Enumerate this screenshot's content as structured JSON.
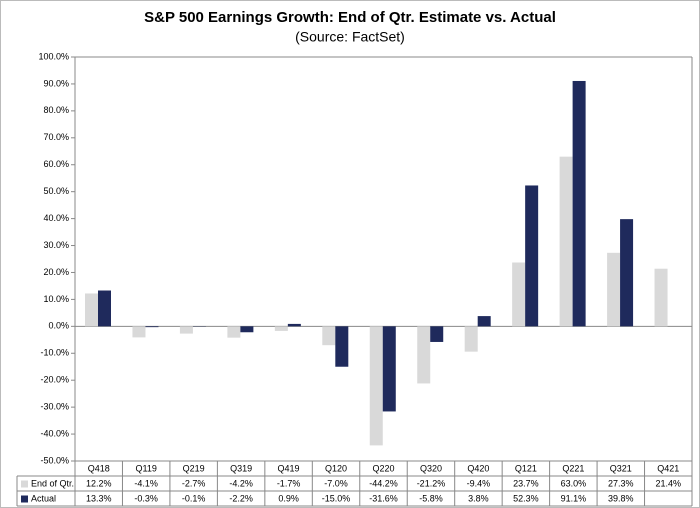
{
  "chart_data": {
    "type": "bar",
    "title": "S&P 500 Earnings Growth: End of Qtr. Estimate vs. Actual",
    "subtitle": "(Source: FactSet)",
    "categories": [
      "Q418",
      "Q119",
      "Q219",
      "Q319",
      "Q419",
      "Q120",
      "Q220",
      "Q320",
      "Q420",
      "Q121",
      "Q221",
      "Q321",
      "Q421"
    ],
    "series": [
      {
        "name": "End of Qtr.",
        "color": "#d9d9d9",
        "values": [
          12.2,
          -4.1,
          -2.7,
          -4.2,
          -1.7,
          -7.0,
          -44.2,
          -21.2,
          -9.4,
          23.7,
          63.0,
          27.3,
          21.4
        ],
        "value_labels": [
          "12.2%",
          "-4.1%",
          "-2.7%",
          "-4.2%",
          "-1.7%",
          "-7.0%",
          "-44.2%",
          "-21.2%",
          "-9.4%",
          "23.7%",
          "63.0%",
          "27.3%",
          "21.4%"
        ]
      },
      {
        "name": "Actual",
        "color": "#1f2a5c",
        "values": [
          13.3,
          -0.3,
          -0.1,
          -2.2,
          0.9,
          -15.0,
          -31.6,
          -5.8,
          3.8,
          52.3,
          91.1,
          39.8,
          null
        ],
        "value_labels": [
          "13.3%",
          "-0.3%",
          "-0.1%",
          "-2.2%",
          "0.9%",
          "-15.0%",
          "-31.6%",
          "-5.8%",
          "3.8%",
          "52.3%",
          "91.1%",
          "39.8%",
          null
        ]
      }
    ],
    "ylim": [
      -50,
      100
    ],
    "yticks": [
      {
        "value": -50,
        "label": "-50.0%"
      },
      {
        "value": -40,
        "label": "-40.0%"
      },
      {
        "value": -30,
        "label": "-30.0%"
      },
      {
        "value": -20,
        "label": "-20.0%"
      },
      {
        "value": -10,
        "label": "-10.0%"
      },
      {
        "value": 0,
        "label": "0.0%"
      },
      {
        "value": 10,
        "label": "10.0%"
      },
      {
        "value": 20,
        "label": "20.0%"
      },
      {
        "value": 30,
        "label": "30.0%"
      },
      {
        "value": 40,
        "label": "40.0%"
      },
      {
        "value": 50,
        "label": "50.0%"
      },
      {
        "value": 60,
        "label": "60.0%"
      },
      {
        "value": 70,
        "label": "70.0%"
      },
      {
        "value": 80,
        "label": "80.0%"
      },
      {
        "value": 90,
        "label": "90.0%"
      },
      {
        "value": 100,
        "label": "100.0%"
      }
    ],
    "grid": false
  }
}
